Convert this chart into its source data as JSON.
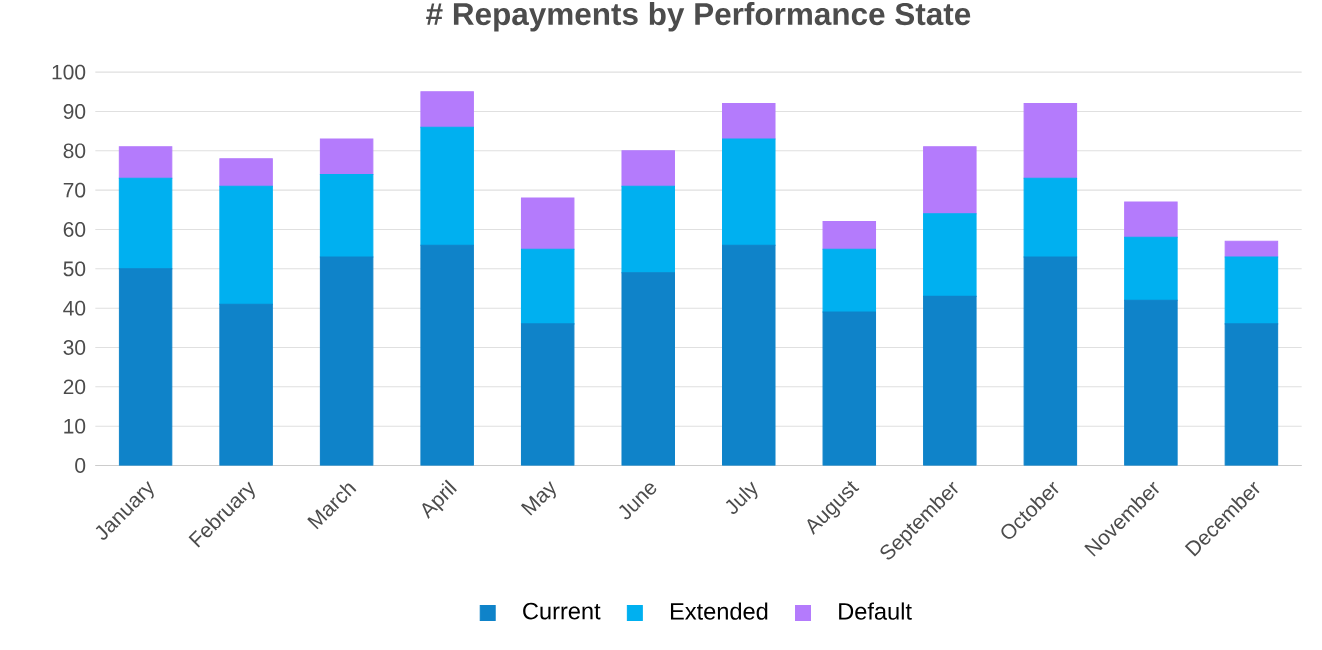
{
  "chart_data": {
    "type": "bar",
    "stacked": true,
    "title": "# Repayments by Performance State",
    "categories": [
      "January",
      "February",
      "March",
      "April",
      "May",
      "June",
      "July",
      "August",
      "September",
      "October",
      "November",
      "December"
    ],
    "series": [
      {
        "name": "Current",
        "color": "#0f83c9",
        "values": [
          50,
          41,
          53,
          56,
          36,
          49,
          56,
          39,
          43,
          53,
          42,
          36
        ]
      },
      {
        "name": "Extended",
        "color": "#00b0f0",
        "values": [
          23,
          30,
          21,
          30,
          19,
          22,
          27,
          16,
          21,
          20,
          16,
          17
        ]
      },
      {
        "name": "Default",
        "color": "#b47bfc",
        "values": [
          8,
          7,
          9,
          9,
          13,
          9,
          9,
          7,
          17,
          19,
          9,
          4
        ]
      }
    ],
    "ylim": [
      0,
      100
    ],
    "yticks": [
      0,
      10,
      20,
      30,
      40,
      50,
      60,
      70,
      80,
      90,
      100
    ],
    "grid": "y",
    "legend": "bottom"
  }
}
